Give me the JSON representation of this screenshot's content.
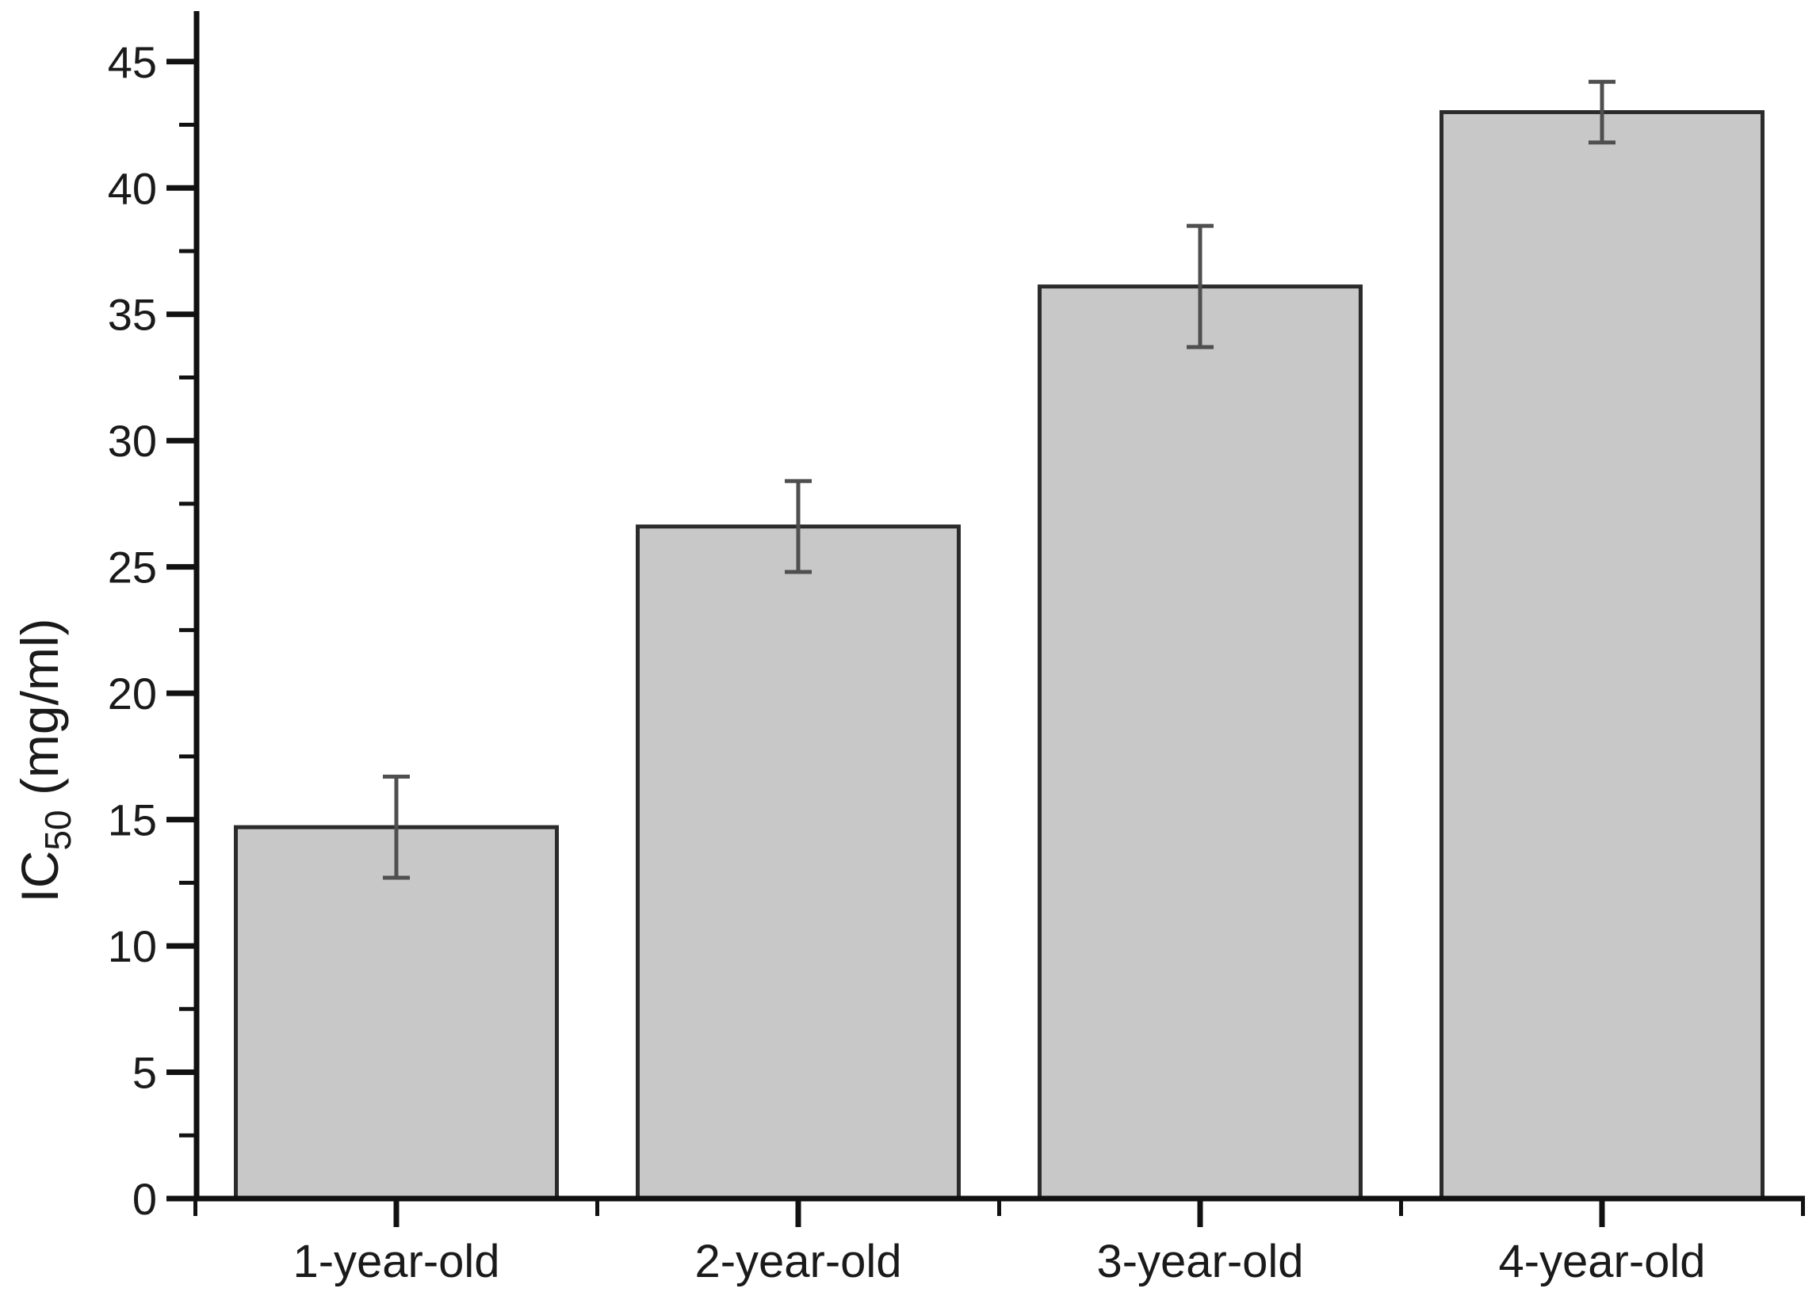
{
  "figure": {
    "background": "#ffffff",
    "aria_label": "Bar chart of IC50 (mg/ml) by sample age"
  },
  "chart_data": {
    "type": "bar",
    "title": "",
    "categories": [
      "1-year-old",
      "2-year-old",
      "3-year-old",
      "4-year-old"
    ],
    "values": [
      14.7,
      26.6,
      36.1,
      43.0
    ],
    "errors": [
      2.0,
      1.8,
      2.4,
      1.2
    ],
    "ylabel": "IC50 (mg/ml)",
    "ylabel_rich": {
      "prefix": "IC",
      "subscript": "50",
      "suffix": " (mg/ml)"
    },
    "xlabel": "",
    "ylim": [
      0,
      47
    ],
    "yticks": [
      0,
      5,
      10,
      15,
      20,
      25,
      30,
      35,
      40,
      45
    ],
    "ytick_minor_step": 2.5,
    "grid": false,
    "legend": "none",
    "colors": {
      "bar_fill": "#c8c8c8",
      "bar_stroke": "#2b2b2b",
      "error_bar": "#4f4f4f",
      "axis": "#111111",
      "text": "#1a1a1a",
      "background": "#ffffff"
    }
  }
}
